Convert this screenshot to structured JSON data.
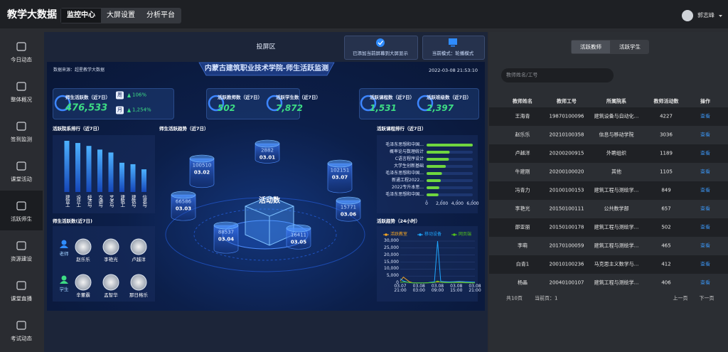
{
  "header": {
    "title": "教学大数据",
    "tabs": [
      "监控中心",
      "大屏设置",
      "分析平台"
    ],
    "active_tab": 0,
    "user": "郭志峰"
  },
  "sidebar": {
    "items": [
      "今日动态",
      "整体概况",
      "签到监测",
      "课堂活动",
      "活跃师生",
      "资源建设",
      "课堂直播",
      "考试动态"
    ],
    "active": 4
  },
  "panel": {
    "title": "投屏区",
    "buttons": [
      "已添加当前屏幕到大屏显示",
      "当前模式：轮播模式"
    ]
  },
  "screen": {
    "source": "数据来源：超星教学大数据",
    "title": "内蒙古建筑职业技术学院-师生活跃监测",
    "datetime": "2022-03-08 21:53:10",
    "cards": [
      {
        "label": "师生活跃数（近7日）",
        "value": "476,533"
      },
      {
        "label": "活跃教师数（近7日）",
        "value": "502"
      },
      {
        "label": "活跃学生数（近7日）",
        "value": "7,872"
      },
      {
        "label": "活跃课程数（近7日）",
        "value": "1,531"
      },
      {
        "label": "活跃班级数（近7日）",
        "value": "2,397"
      }
    ],
    "week": {
      "label": "周",
      "value": "106%"
    },
    "month": {
      "label": "月",
      "value": "1,254%"
    },
    "people": {
      "title": "师生活跃数(近7日)",
      "groups": [
        {
          "label": "老师",
          "names": [
            "赵乐乐",
            "李艳光",
            "卢越洋"
          ]
        },
        {
          "label": "学生",
          "names": [
            "辛董霸",
            "孟智华",
            "那日格乐"
          ]
        }
      ]
    }
  },
  "chart_data": [
    {
      "type": "bar",
      "title": "活跃院系排行（近7日）",
      "categories": [
        "建设工",
        "设计工",
        "经济与",
        "交通与",
        "艺术与",
        "建筑工",
        "建筑与",
        "信息与"
      ],
      "values": [
        70,
        67,
        63,
        58,
        54,
        40,
        38,
        31
      ],
      "color": "#2f8cff"
    },
    {
      "type": "cylinder",
      "title": "师生活跃趋势（近7日）",
      "center_label": "活动数",
      "categories": [
        "03.02",
        "03.01",
        "03.07",
        "03.03",
        "03.04",
        "03.05",
        "03.06"
      ],
      "values": [
        100510,
        2882,
        102151,
        66586,
        88537,
        16411,
        15771
      ]
    },
    {
      "type": "hbar",
      "title": "活跃课程排行（近7日）",
      "categories": [
        "毛泽东思想和中国...",
        "概率论与数理统计",
        "C语言程序设计",
        "大学生创新基础",
        "毛泽东思想和中国...",
        "新通工程2022...",
        "2022专升本思...",
        "毛泽东思想和中国..."
      ],
      "values": [
        6000,
        3000,
        2900,
        2500,
        2000,
        1850,
        1650,
        1550
      ],
      "color": "#6fd63f",
      "xlim": [
        0,
        6000
      ],
      "xticks": [
        0,
        {
          "value": 2000,
          "label": "2,000"
        },
        {
          "value": 4000,
          "label": "4,000"
        },
        {
          "value": 6000,
          "label": "6,000"
        }
      ]
    },
    {
      "type": "line",
      "title": "活跃趋势（24小时）",
      "grid": true,
      "categories": [
        "03.07\n21:00",
        null,
        null,
        null,
        null,
        null,
        "03.08\n03:00",
        null,
        null,
        null,
        null,
        null,
        "03.08\n09:00",
        null,
        null,
        null,
        null,
        null,
        "03.08\n15:00",
        null,
        null,
        null,
        null,
        null,
        "03.08\n21:00"
      ],
      "ylim": [
        0,
        30000
      ],
      "yticks": [
        0,
        {
          "value": 5000,
          "label": "5,000"
        },
        {
          "value": 10000,
          "label": "10,000"
        },
        {
          "value": 15000,
          "label": "15,000"
        },
        {
          "value": 20000,
          "label": "20,000"
        },
        {
          "value": 25000,
          "label": "25,000"
        },
        {
          "value": 30000,
          "label": "30,000"
        }
      ],
      "series": [
        {
          "name": "活跃教室",
          "color": "#f5a623",
          "values": [
            1500,
            4200,
            2500,
            800,
            200,
            100,
            50,
            50,
            100,
            200,
            400,
            600,
            800,
            700,
            600,
            500,
            500,
            600,
            700,
            600,
            500,
            400,
            300,
            200,
            200
          ]
        },
        {
          "name": "移动设备",
          "color": "#1ea7ff",
          "values": [
            3000,
            1500,
            800,
            300,
            150,
            100,
            100,
            100,
            150,
            300,
            600,
            900,
            30000,
            1200,
            1000,
            900,
            800,
            900,
            1000,
            1100,
            1000,
            900,
            800,
            700,
            600
          ]
        },
        {
          "name": "网页端",
          "color": "#52c41a",
          "values": [
            500,
            800,
            600,
            300,
            100,
            50,
            50,
            50,
            100,
            200,
            300,
            400,
            1500,
            500,
            400,
            300,
            300,
            400,
            400,
            300,
            300,
            200,
            200,
            100,
            100
          ]
        }
      ]
    }
  ],
  "table": {
    "tabs": [
      "活跃教师",
      "活跃学生"
    ],
    "active_tab": 0,
    "search_placeholder": "教师姓名/工号",
    "columns": [
      "教师姓名",
      "教师工号",
      "所属院系",
      "教师活动数",
      "操作"
    ],
    "rows": [
      [
        "王海青",
        "19870100096",
        "建筑设备与自动化...",
        "4227",
        "查看"
      ],
      [
        "赵乐乐",
        "20210100358",
        "信息与移动学院",
        "3036",
        "查看"
      ],
      [
        "卢越洋",
        "20200200915",
        "外聘组织",
        "1189",
        "查看"
      ],
      [
        "牛建刚",
        "20200100020",
        "其他",
        "1105",
        "查看"
      ],
      [
        "冯青力",
        "20100100153",
        "建筑工程与测绘学...",
        "849",
        "查看"
      ],
      [
        "李艳光",
        "20150100111",
        "公共数学部",
        "657",
        "查看"
      ],
      [
        "邵亚丽",
        "20150100178",
        "建筑工程与测绘学...",
        "502",
        "查看"
      ],
      [
        "李萌",
        "20170100059",
        "建筑工程与测绘学...",
        "465",
        "查看"
      ],
      [
        "白青1",
        "20010100236",
        "马克思主义数学与...",
        "412",
        "查看"
      ],
      [
        "杨晶",
        "20040100107",
        "建筑工程与测绘学...",
        "406",
        "查看"
      ]
    ],
    "footer": {
      "pages": "共10页",
      "current": "当前页：1",
      "prev": "上一页",
      "next": "下一页"
    }
  }
}
